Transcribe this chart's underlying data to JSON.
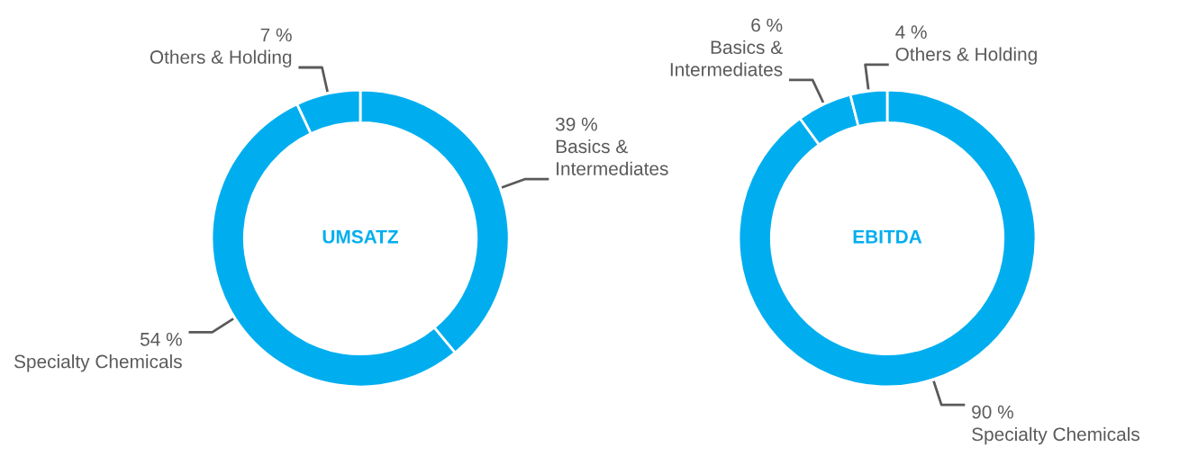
{
  "chart_data": [
    {
      "type": "donut",
      "title": "UMSATZ",
      "categories": [
        "Basics &\nIntermediates",
        "Specialty Chemicals",
        "Others & Holding"
      ],
      "values": [
        39,
        54,
        7
      ],
      "value_labels": [
        "39 %",
        "54 %",
        "7 %"
      ],
      "colors": [
        "#00aeef",
        "#00aeef",
        "#00aeef"
      ]
    },
    {
      "type": "donut",
      "title": "EBITDA",
      "categories": [
        "Specialty Chemicals",
        "Basics &\nIntermediates",
        "Others & Holding"
      ],
      "values": [
        90,
        6,
        4
      ],
      "value_labels": [
        "90 %",
        "6 %",
        "4 %"
      ],
      "colors": [
        "#00aeef",
        "#00aeef",
        "#00aeef"
      ]
    }
  ]
}
